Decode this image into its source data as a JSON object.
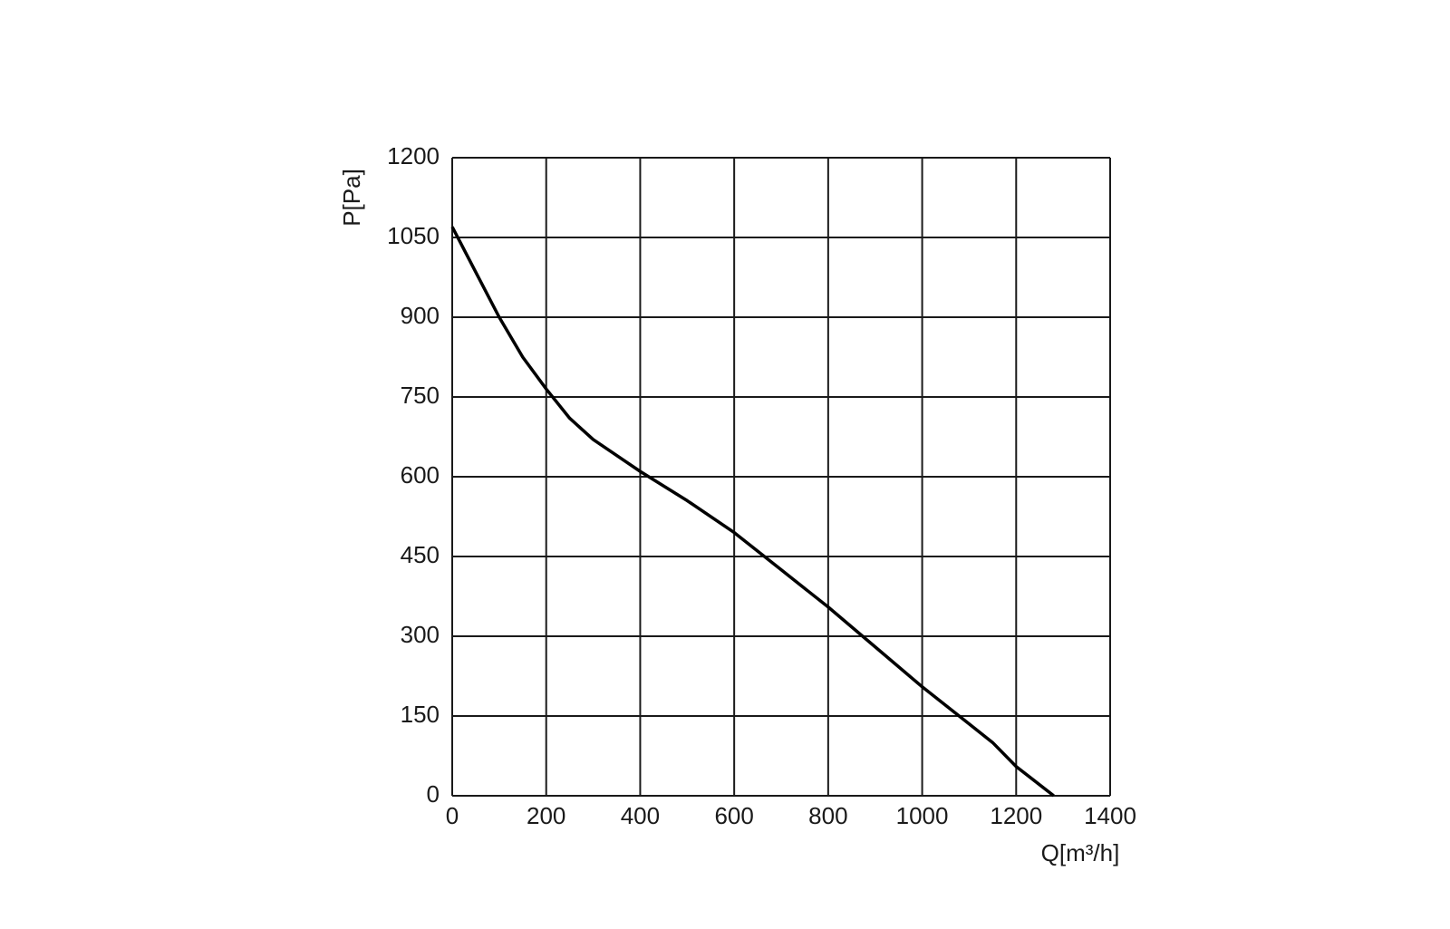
{
  "chart_data": {
    "type": "line",
    "x_label": "Q[m³/h]",
    "y_label": "P[Pa]",
    "x": [
      0,
      50,
      100,
      150,
      200,
      250,
      300,
      400,
      500,
      600,
      700,
      800,
      900,
      1000,
      1100,
      1150,
      1200,
      1280
    ],
    "series": [
      {
        "color": "#000000",
        "values": [
          1070,
          985,
          900,
          825,
          765,
          710,
          670,
          610,
          555,
          495,
          425,
          355,
          280,
          205,
          135,
          100,
          55,
          0
        ]
      }
    ],
    "xlim": [
      0,
      1400
    ],
    "xticks": [
      0,
      200,
      400,
      600,
      800,
      1000,
      1200,
      1400
    ],
    "ylim": [
      0,
      1200
    ],
    "yticks": [
      0,
      150,
      300,
      450,
      600,
      750,
      900,
      1050,
      1200
    ],
    "grid": true
  }
}
